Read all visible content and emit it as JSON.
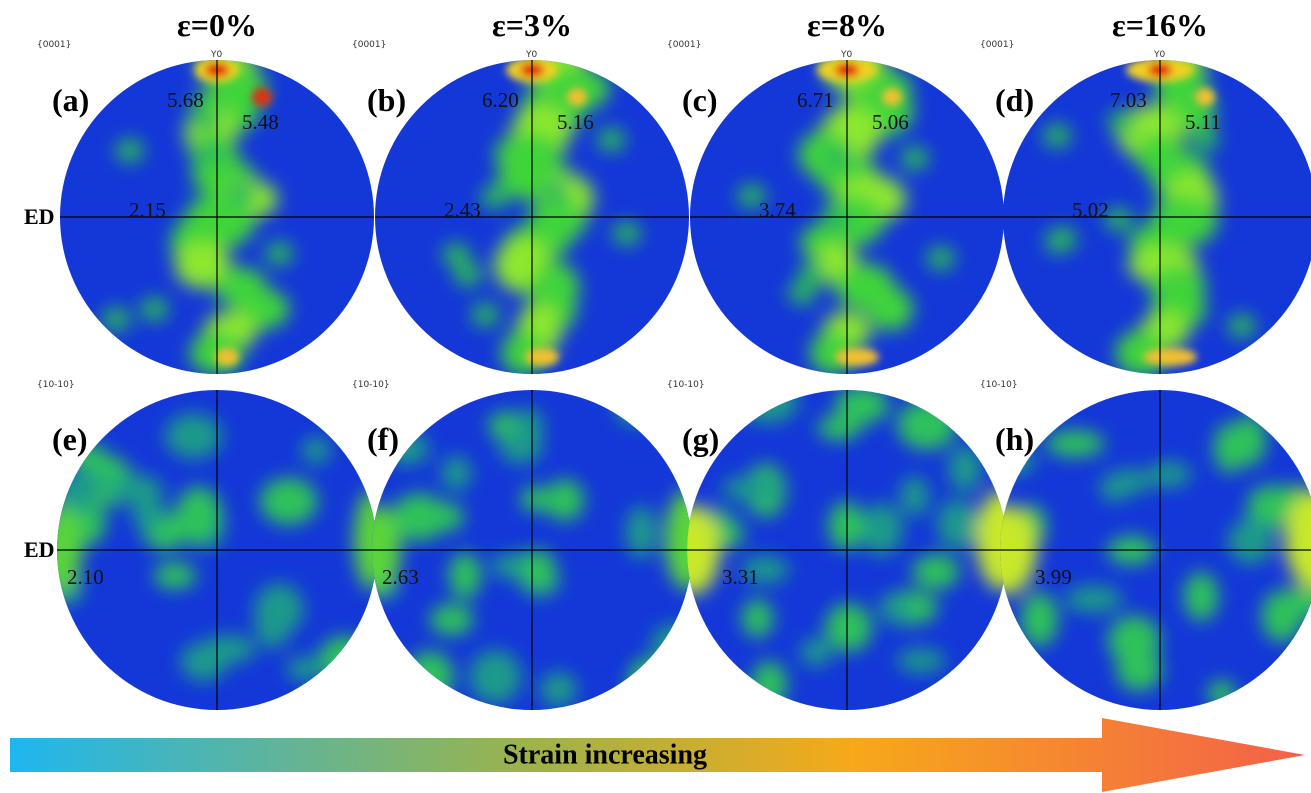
{
  "side_label_top": "ED",
  "side_label_bottom": "ED",
  "arrow_text": "Strain increasing",
  "columns": [
    {
      "strain": "ε=0%",
      "top": {
        "label": "(a)",
        "pole": "{0001}",
        "axis": "Y0",
        "values": [
          "5.68",
          "5.48",
          "2.15"
        ]
      },
      "bottom": {
        "label": "(e)",
        "pole": "{10-10}",
        "value": "2.10"
      }
    },
    {
      "strain": "ε=3%",
      "top": {
        "label": "(b)",
        "pole": "{0001}",
        "axis": "Y0",
        "values": [
          "6.20",
          "5.16",
          "2.43"
        ]
      },
      "bottom": {
        "label": "(f)",
        "pole": "{10-10}",
        "value": "2.63"
      }
    },
    {
      "strain": "ε=8%",
      "top": {
        "label": "(c)",
        "pole": "{0001}",
        "axis": "Y0",
        "values": [
          "6.71",
          "5.06",
          "3.74"
        ]
      },
      "bottom": {
        "label": "(g)",
        "pole": "{10-10}",
        "value": "3.31"
      }
    },
    {
      "strain": "ε=16%",
      "top": {
        "label": "(d)",
        "pole": "{0001}",
        "axis": "Y0",
        "values": [
          "7.03",
          "5.11",
          "5.02"
        ]
      },
      "bottom": {
        "label": "(h)",
        "pole": "{10-10}",
        "value": "3.99"
      }
    }
  ]
}
